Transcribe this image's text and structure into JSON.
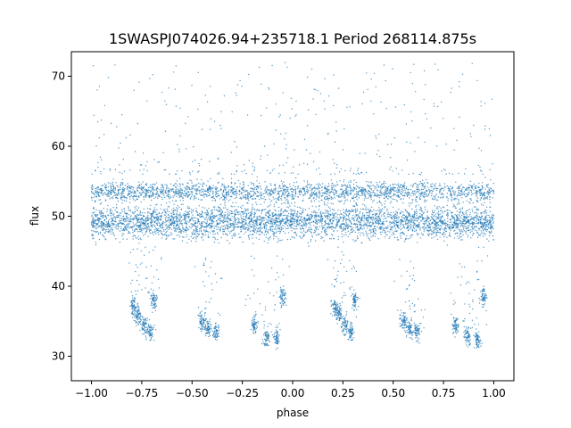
{
  "chart_data": {
    "type": "scatter",
    "title": "1SWASPJ074026.94+235718.1 Period 268114.875s",
    "xlabel": "phase",
    "ylabel": "flux",
    "xlim": [
      -1.1,
      1.1
    ],
    "ylim": [
      26.5,
      73.5
    ],
    "xticks": [
      -1.0,
      -0.75,
      -0.5,
      -0.25,
      0.0,
      0.25,
      0.5,
      0.75,
      1.0
    ],
    "xtick_labels": [
      "−1.00",
      "−0.75",
      "−0.50",
      "−0.25",
      "0.00",
      "0.25",
      "0.50",
      "0.75",
      "1.00"
    ],
    "yticks": [
      30,
      40,
      50,
      60,
      70
    ],
    "ytick_labels": [
      "30",
      "40",
      "50",
      "60",
      "70"
    ],
    "grid": false,
    "marker_color": "#1f77b4",
    "series": [
      {
        "description_free": true,
        "components": [
          {
            "band": "baseline",
            "x_range": [
              -1.0,
              1.0
            ],
            "y_center": 49.2,
            "y_spread": 1.6,
            "density": 0.55
          },
          {
            "band": "upper",
            "x_range": [
              -1.0,
              1.0
            ],
            "y_center": 53.5,
            "y_spread": 1.0,
            "density": 0.3
          },
          {
            "band": "low_clumps",
            "points": [
              [
                -0.79,
                37.0
              ],
              [
                -0.77,
                36.0
              ],
              [
                -0.74,
                34.5
              ],
              [
                -0.71,
                33.5
              ],
              [
                -0.69,
                38.0
              ],
              [
                -0.45,
                35.0
              ],
              [
                -0.42,
                34.0
              ],
              [
                -0.38,
                33.5
              ],
              [
                -0.19,
                34.5
              ],
              [
                -0.13,
                32.8
              ],
              [
                -0.08,
                32.5
              ],
              [
                -0.05,
                38.5
              ],
              [
                0.21,
                37.0
              ],
              [
                0.23,
                36.0
              ],
              [
                0.26,
                34.5
              ],
              [
                0.29,
                33.5
              ],
              [
                0.31,
                38.0
              ],
              [
                0.55,
                35.0
              ],
              [
                0.58,
                34.0
              ],
              [
                0.62,
                33.5
              ],
              [
                0.81,
                34.5
              ],
              [
                0.87,
                32.8
              ],
              [
                0.92,
                32.5
              ],
              [
                0.95,
                38.5
              ]
            ]
          },
          {
            "band": "high_scatter",
            "x_range": [
              -1.0,
              1.0
            ],
            "y_range": [
              56.0,
              72.0
            ],
            "density": 0.05
          }
        ]
      }
    ]
  }
}
